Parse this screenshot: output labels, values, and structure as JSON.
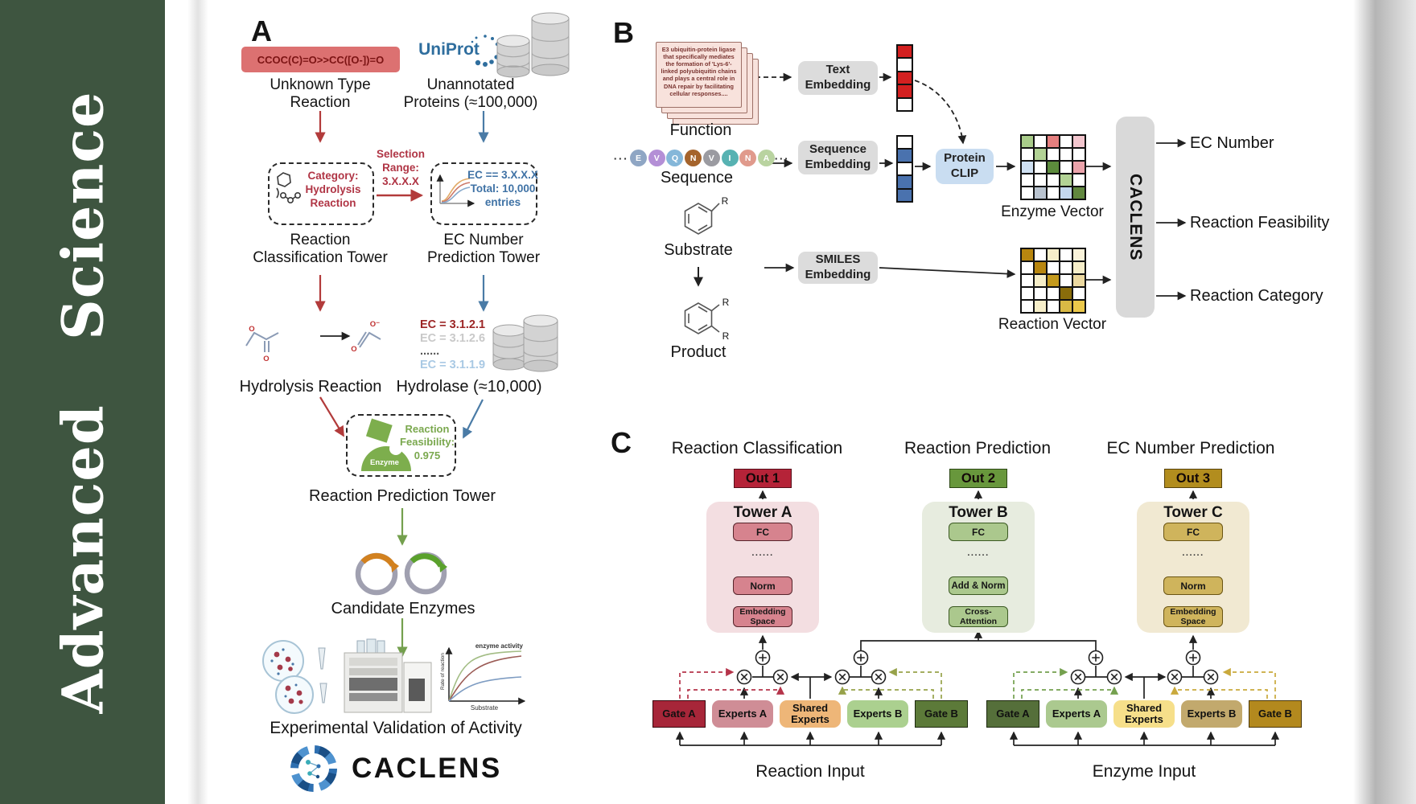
{
  "sidebar": {
    "journal": "Advanced  Science"
  },
  "panelA": {
    "label": "A",
    "smiles": "CCOC(C)=O>>CC([O-])=O",
    "unknown_reaction": "Unknown Type\nReaction",
    "uniprot": "UniProt",
    "unannotated": "Unannotated\nProteins (≈100,000)",
    "selection": "Selection\nRange:\n3.X.X.X",
    "category": "Category:\nHydrolysis\nReaction",
    "ec_box": "EC == 3.X.X.X\nTotal: 10,000\nentries",
    "rc_tower": "Reaction\nClassification Tower",
    "ec_tower": "EC Number\nPrediction Tower",
    "hydrolysis": "Hydrolysis Reaction",
    "hydrolase": "Hydrolase (≈10,000)",
    "ec_list": [
      {
        "text": "EC = 3.1.2.1",
        "color": "#9c2626",
        "bold": true
      },
      {
        "text": "EC = 3.1.2.6",
        "color": "#c9c9c9",
        "bold": false
      },
      {
        "text": "......",
        "color": "#555555",
        "bold": true
      },
      {
        "text": "EC = 3.1.1.9",
        "color": "#a9c9e4",
        "bold": false
      }
    ],
    "enzyme": "Enzyme",
    "feasibility": "Reaction\nFeasibility:\n0.975",
    "rp_tower": "Reaction Prediction Tower",
    "candidate": "Candidate Enzymes",
    "graph": {
      "annotation": "enzyme activity",
      "ylabel": "Rate of reaction",
      "xlabel": "Substrate"
    },
    "validation": "Experimental Validation of Activity",
    "logo": "CACLENS",
    "atom_o": "O",
    "atom_o_minus": "O⁻"
  },
  "panelB": {
    "label": "B",
    "function_card": "E3 ubiquitin-protein ligase that specifically mediates the formation of 'Lys-6'-linked polyubiquitin chains and plays a central role in DNA repair by facilitating cellular responses....",
    "function": "Function",
    "ellipsis": "···",
    "sequence_letters": [
      {
        "l": "E",
        "c": "#8fa6c4"
      },
      {
        "l": "V",
        "c": "#b48fd6"
      },
      {
        "l": "Q",
        "c": "#85b7d9"
      },
      {
        "l": "N",
        "c": "#a5642c"
      },
      {
        "l": "V",
        "c": "#9b9ba1"
      },
      {
        "l": "I",
        "c": "#57b2b2"
      },
      {
        "l": "N",
        "c": "#e09a8c"
      },
      {
        "l": "A",
        "c": "#b9d3a0"
      }
    ],
    "sequence": "Sequence",
    "substrate": "Substrate",
    "product": "Product",
    "r_label": "R",
    "text_embedding": "Text\nEmbedding",
    "sequence_embedding": "Sequence\nEmbedding",
    "smiles_embedding": "SMILES\nEmbedding",
    "protein_clip": "Protein\nCLIP",
    "text_vector": [
      "#d32020",
      "#ffffff",
      "#d32020",
      "#d32020",
      "#ffffff"
    ],
    "seq_vector": [
      "#ffffff",
      "#4a72ae",
      "#ffffff",
      "#4a72ae",
      "#4a72ae"
    ],
    "enzyme_matrix": [
      [
        "#a9cc8a",
        "#ffffff",
        "#e57f7f",
        "#ffffff",
        "#f3c6ce"
      ],
      [
        "#ffffff",
        "#b2d295",
        "#ffffff",
        "#ffffff",
        "#ffffff"
      ],
      [
        "#cfe0f2",
        "#ffffff",
        "#5c8b3c",
        "#ffffff",
        "#eba3ab"
      ],
      [
        "#ffffff",
        "#ffffff",
        "#ffffff",
        "#b2d295",
        "#ffffff"
      ],
      [
        "#ffffff",
        "#b9c3cf",
        "#ffffff",
        "#c3d7ee",
        "#61883f"
      ]
    ],
    "reaction_matrix": [
      [
        "#b8860f",
        "#ffffff",
        "#f6eec9",
        "#ffffff",
        "#faf3da"
      ],
      [
        "#ffffff",
        "#b8860f",
        "#ffffff",
        "#ffffff",
        "#f6eec9"
      ],
      [
        "#ffffff",
        "#f6eec9",
        "#c49a1d",
        "#ffffff",
        "#ecd9a0"
      ],
      [
        "#ffffff",
        "#ffffff",
        "#ffffff",
        "#8a6d0b",
        "#ffffff"
      ],
      [
        "#ffffff",
        "#f6eec9",
        "#ffffff",
        "#d9b945",
        "#ecc94b"
      ]
    ],
    "enzyme_vector": "Enzyme Vector",
    "reaction_vector": "Reaction Vector",
    "caclens": "CACLENS",
    "outputs": [
      "EC Number",
      "Reaction Feasibility",
      "Reaction Category"
    ]
  },
  "panelC": {
    "label": "C",
    "towers": [
      {
        "title": "Reaction Classification",
        "out": "Out 1",
        "name": "Tower A",
        "fc": "FC",
        "dots": "......",
        "mid": "Norm",
        "base": "Embedding\nSpace"
      },
      {
        "title": "Reaction Prediction",
        "out": "Out 2",
        "name": "Tower B",
        "fc": "FC",
        "dots": "......",
        "mid": "Add & Norm",
        "base": "Cross-\nAttention"
      },
      {
        "title": "EC Number Prediction",
        "out": "Out 3",
        "name": "Tower C",
        "fc": "FC",
        "dots": "......",
        "mid": "Norm",
        "base": "Embedding\nSpace"
      }
    ],
    "moe": [
      {
        "input": "Reaction Input",
        "boxes": [
          {
            "label": "Gate A",
            "bg": "#a72639",
            "type": "gate",
            "border": "#38060d"
          },
          {
            "label": "Experts A",
            "bg": "#cf8d96",
            "type": "expert"
          },
          {
            "label": "Shared\nExperts",
            "bg": "#eeb678",
            "type": "expert"
          },
          {
            "label": "Experts B",
            "bg": "#abd08f",
            "type": "expert"
          },
          {
            "label": "Gate B",
            "bg": "#5c7a39",
            "type": "gate",
            "border": "#1c280e"
          }
        ]
      },
      {
        "input": "Enzyme Input",
        "boxes": [
          {
            "label": "Gate A",
            "bg": "#556f3a",
            "type": "gate",
            "border": "#1c280e"
          },
          {
            "label": "Experts A",
            "bg": "#abc98f",
            "type": "expert"
          },
          {
            "label": "Shared\nExperts",
            "bg": "#f6df8a",
            "type": "expert"
          },
          {
            "label": "Experts B",
            "bg": "#c2a96d",
            "type": "expert"
          },
          {
            "label": "Gate B",
            "bg": "#b3891e",
            "type": "gate",
            "border": "#4a3608"
          }
        ]
      }
    ]
  }
}
